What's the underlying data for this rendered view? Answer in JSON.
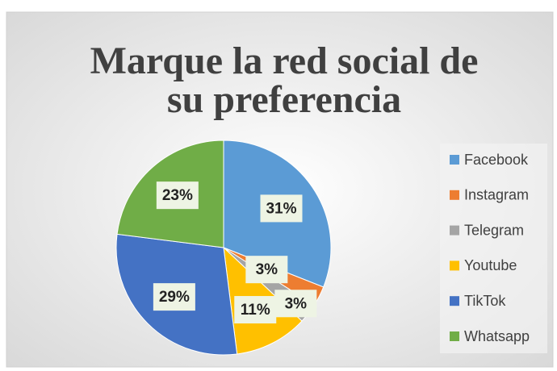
{
  "chart_data": {
    "type": "pie",
    "title": "Marque la red social de su preferencia",
    "categories": [
      "Facebook",
      "Instagram",
      "Telegram",
      "Youtube",
      "TikTok",
      "Whatsapp"
    ],
    "values": [
      31,
      3,
      3,
      11,
      29,
      23
    ],
    "value_labels": [
      "31%",
      "3%",
      "3%",
      "11%",
      "29%",
      "23%"
    ],
    "colors": [
      "#5b9bd5",
      "#ed7d31",
      "#a5a5a5",
      "#ffc000",
      "#4472c4",
      "#70ad47"
    ],
    "legend": "right"
  }
}
